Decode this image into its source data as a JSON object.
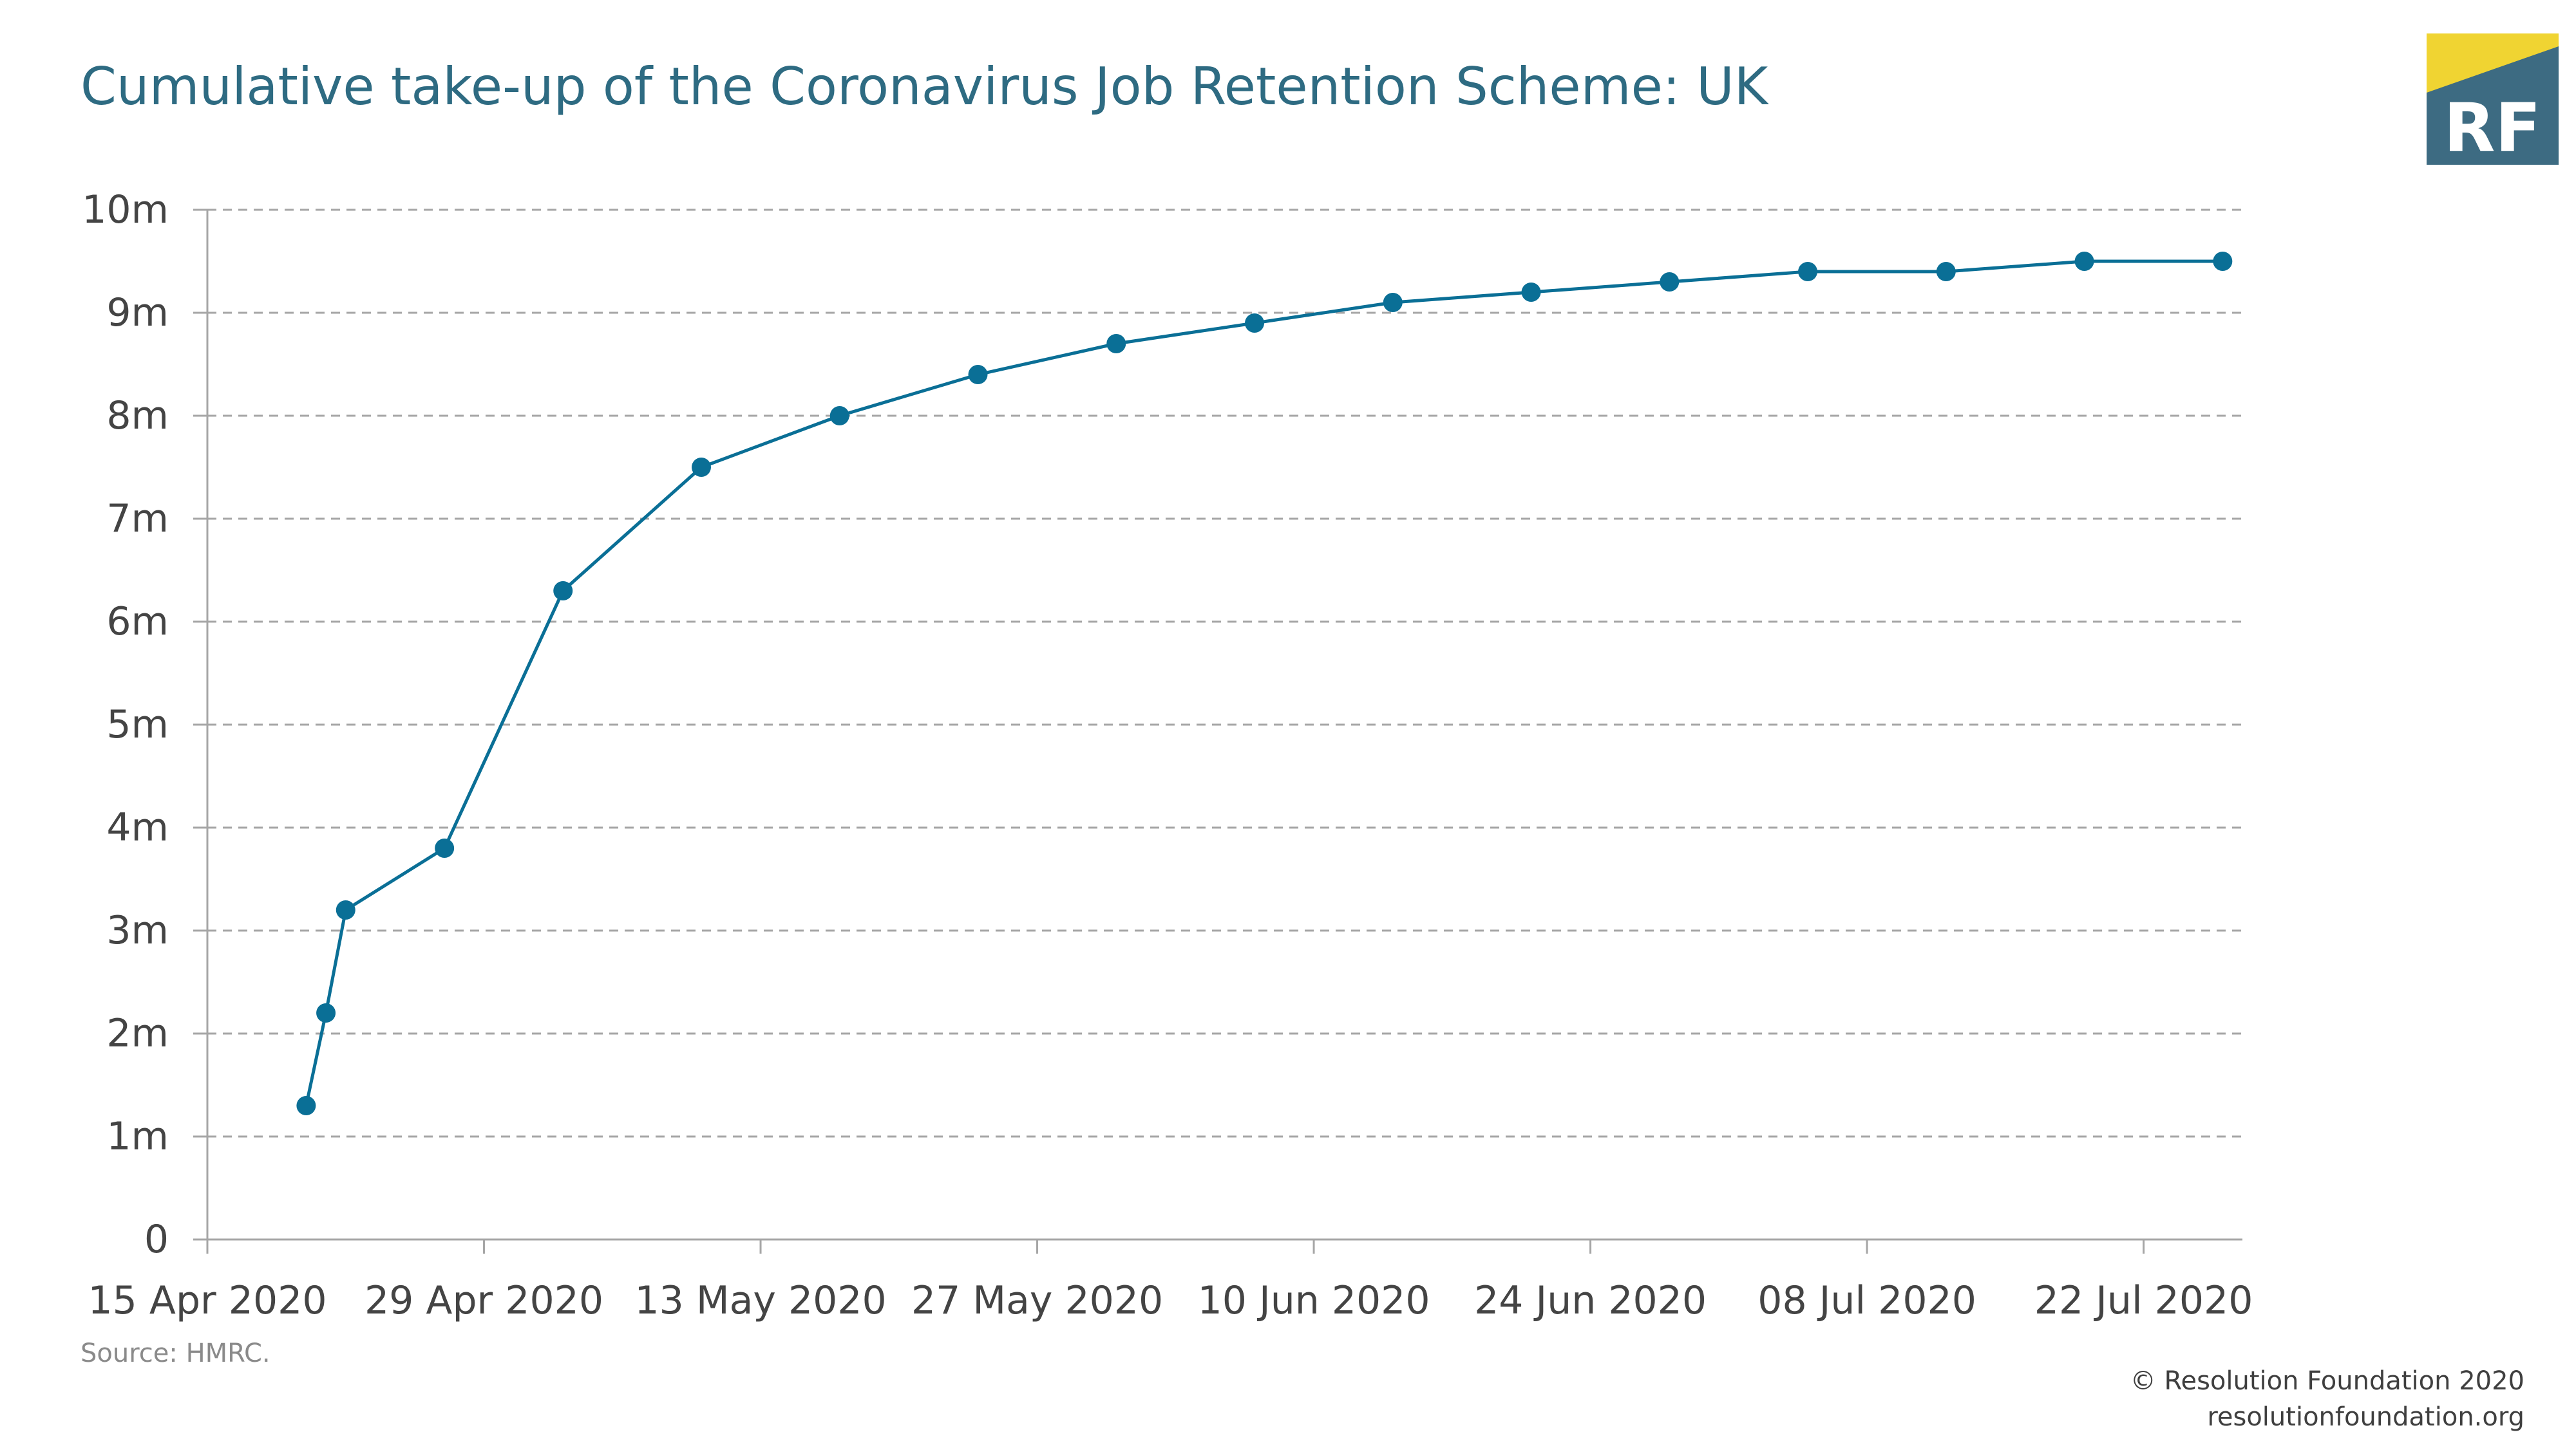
{
  "title": "Cumulative take-up of the Coronavirus Job Retention Scheme: UK",
  "source": "Source: HMRC.",
  "credit": {
    "copyright": "© Resolution Foundation 2020",
    "website": "resolutionfoundation.org"
  },
  "logo": {
    "text": "RF",
    "colors": {
      "background": "#3d6b82",
      "accent": "#f0d432",
      "text": "#ffffff"
    }
  },
  "chart_data": {
    "type": "line",
    "title": "Cumulative take-up of the Coronavirus Job Retention Scheme: UK",
    "xlabel": "",
    "ylabel": "",
    "ylim": [
      0,
      10
    ],
    "xlim": [
      "2020-04-15",
      "2020-07-27"
    ],
    "grid": true,
    "legend": "none",
    "line_color": "#0a6f96",
    "y_ticks": [
      {
        "value": 0,
        "label": "0"
      },
      {
        "value": 1,
        "label": "1m"
      },
      {
        "value": 2,
        "label": "2m"
      },
      {
        "value": 3,
        "label": "3m"
      },
      {
        "value": 4,
        "label": "4m"
      },
      {
        "value": 5,
        "label": "5m"
      },
      {
        "value": 6,
        "label": "6m"
      },
      {
        "value": 7,
        "label": "7m"
      },
      {
        "value": 8,
        "label": "8m"
      },
      {
        "value": 9,
        "label": "9m"
      },
      {
        "value": 10,
        "label": "10m"
      }
    ],
    "x_ticks": [
      {
        "date": "2020-04-15",
        "label": "15 Apr 2020"
      },
      {
        "date": "2020-04-29",
        "label": "29 Apr 2020"
      },
      {
        "date": "2020-05-13",
        "label": "13 May 2020"
      },
      {
        "date": "2020-05-27",
        "label": "27 May 2020"
      },
      {
        "date": "2020-06-10",
        "label": "10 Jun 2020"
      },
      {
        "date": "2020-06-24",
        "label": "24 Jun 2020"
      },
      {
        "date": "2020-07-08",
        "label": "08 Jul 2020"
      },
      {
        "date": "2020-07-22",
        "label": "22 Jul 2020"
      }
    ],
    "series": [
      {
        "points": [
          {
            "x": "2020-04-20",
            "y": 1.3
          },
          {
            "x": "2020-04-21",
            "y": 2.2
          },
          {
            "x": "2020-04-22",
            "y": 3.2
          },
          {
            "x": "2020-04-27",
            "y": 3.8
          },
          {
            "x": "2020-05-03",
            "y": 6.3
          },
          {
            "x": "2020-05-10",
            "y": 7.5
          },
          {
            "x": "2020-05-17",
            "y": 8.0
          },
          {
            "x": "2020-05-24",
            "y": 8.4
          },
          {
            "x": "2020-05-31",
            "y": 8.7
          },
          {
            "x": "2020-06-07",
            "y": 8.9
          },
          {
            "x": "2020-06-14",
            "y": 9.1
          },
          {
            "x": "2020-06-21",
            "y": 9.2
          },
          {
            "x": "2020-06-28",
            "y": 9.3
          },
          {
            "x": "2020-07-05",
            "y": 9.4
          },
          {
            "x": "2020-07-12",
            "y": 9.4
          },
          {
            "x": "2020-07-19",
            "y": 9.5
          },
          {
            "x": "2020-07-26",
            "y": 9.5
          }
        ]
      }
    ]
  }
}
